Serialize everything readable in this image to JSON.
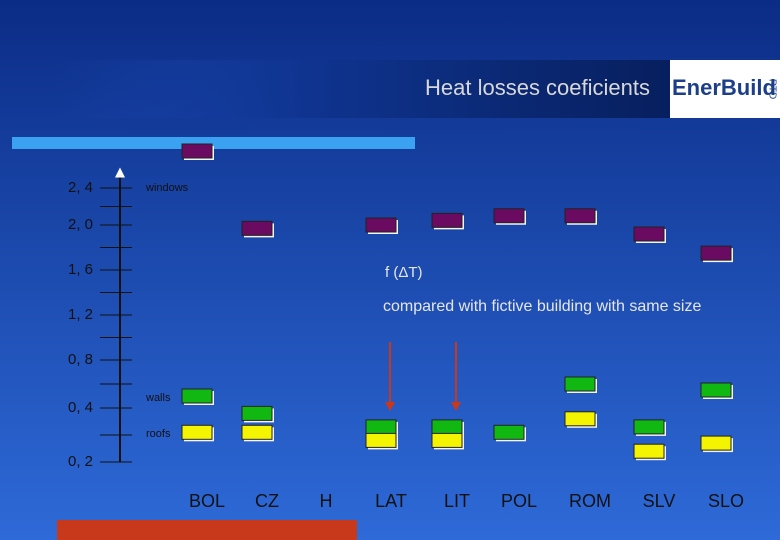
{
  "chart_data": {
    "type": "box-marker",
    "title": "Heat losses coeficients",
    "logo": {
      "main": "EnerBuild",
      "side": "RTD"
    },
    "annotations": [
      "f (ΔT)",
      "compared with fictive building with same size"
    ],
    "categories": [
      "BOL",
      "CZ",
      "H",
      "LAT",
      "LIT",
      "POL",
      "ROM",
      "SLV",
      "SLO"
    ],
    "series": [
      {
        "name": "windows",
        "color": "#6a0a60",
        "values": [
          2.8,
          1.97,
          null,
          2.0,
          2.05,
          2.1,
          2.1,
          1.92,
          1.75
        ]
      },
      {
        "name": "walls",
        "color": "#12b812",
        "values": [
          0.5,
          0.38,
          null,
          0.33,
          0.33,
          0.31,
          0.6,
          0.33,
          0.55
        ]
      },
      {
        "name": "roofs",
        "color": "#f4f400",
        "values": [
          0.31,
          0.31,
          null,
          0.28,
          0.28,
          null,
          0.36,
          0.24,
          0.27
        ]
      }
    ],
    "ylim": [
      0.2,
      2.6
    ],
    "yticks": [
      {
        "value": 2.4,
        "label": "2, 4"
      },
      {
        "value": 2.0,
        "label": "2, 0"
      },
      {
        "value": 1.6,
        "label": "1, 6"
      },
      {
        "value": 1.2,
        "label": "1, 2"
      },
      {
        "value": 0.8,
        "label": "0, 8"
      },
      {
        "value": 0.4,
        "label": "0, 4"
      },
      {
        "value": 0.2,
        "label": "0, 2"
      }
    ]
  }
}
